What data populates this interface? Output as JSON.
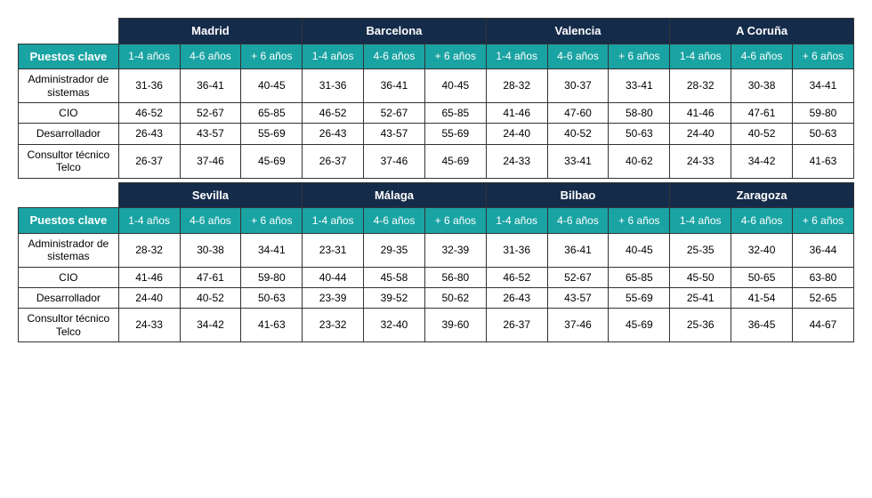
{
  "style": {
    "city_header_bg": "#152b4a",
    "city_header_fg": "#ffffff",
    "teal_bg": "#1aa3a3",
    "teal_fg": "#ffffff",
    "border_color": "#333333",
    "font_family": "Arial, sans-serif",
    "city_header_fontsize": 13,
    "sub_header_fontsize": 12,
    "cell_fontsize": 12
  },
  "row_label_header": "Puestos clave",
  "exp_labels": [
    "1-4 años",
    "4-6 años",
    "+ 6 años"
  ],
  "positions": [
    "Administrador de sistemas",
    "CIO",
    "Desarrollador",
    "Consultor técnico Telco"
  ],
  "blocks": [
    {
      "cities": [
        "Madrid",
        "Barcelona",
        "Valencia",
        "A Coruña"
      ],
      "rows": [
        [
          "31-36",
          "36-41",
          "40-45",
          "31-36",
          "36-41",
          "40-45",
          "28-32",
          "30-37",
          "33-41",
          "28-32",
          "30-38",
          "34-41"
        ],
        [
          "46-52",
          "52-67",
          "65-85",
          "46-52",
          "52-67",
          "65-85",
          "41-46",
          "47-60",
          "58-80",
          "41-46",
          "47-61",
          "59-80"
        ],
        [
          "26-43",
          "43-57",
          "55-69",
          "26-43",
          "43-57",
          "55-69",
          "24-40",
          "40-52",
          "50-63",
          "24-40",
          "40-52",
          "50-63"
        ],
        [
          "26-37",
          "37-46",
          "45-69",
          "26-37",
          "37-46",
          "45-69",
          "24-33",
          "33-41",
          "40-62",
          "24-33",
          "34-42",
          "41-63"
        ]
      ]
    },
    {
      "cities": [
        "Sevilla",
        "Málaga",
        "Bilbao",
        "Zaragoza"
      ],
      "rows": [
        [
          "28-32",
          "30-38",
          "34-41",
          "23-31",
          "29-35",
          "32-39",
          "31-36",
          "36-41",
          "40-45",
          "25-35",
          "32-40",
          "36-44"
        ],
        [
          "41-46",
          "47-61",
          "59-80",
          "40-44",
          "45-58",
          "56-80",
          "46-52",
          "52-67",
          "65-85",
          "45-50",
          "50-65",
          "63-80"
        ],
        [
          "24-40",
          "40-52",
          "50-63",
          "23-39",
          "39-52",
          "50-62",
          "26-43",
          "43-57",
          "55-69",
          "25-41",
          "41-54",
          "52-65"
        ],
        [
          "24-33",
          "34-42",
          "41-63",
          "23-32",
          "32-40",
          "39-60",
          "26-37",
          "37-46",
          "45-69",
          "25-36",
          "36-45",
          "44-67"
        ]
      ]
    }
  ]
}
